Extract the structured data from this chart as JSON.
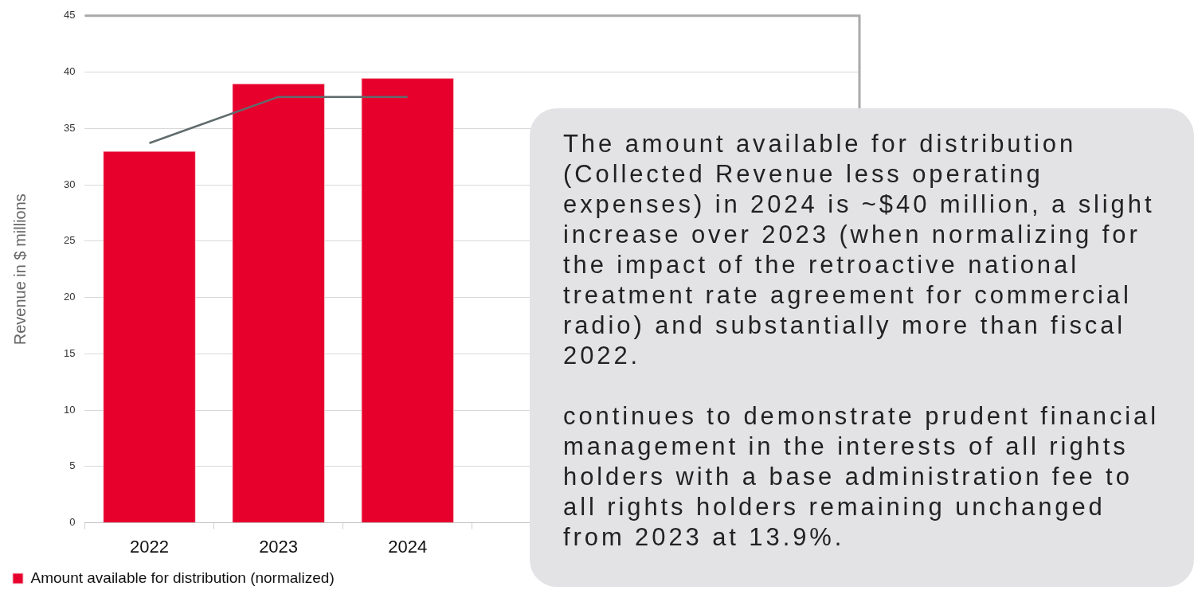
{
  "chart_data": {
    "type": "bar",
    "ylabel": "Revenue in $ millions",
    "categories": [
      "2022",
      "2023",
      "2024",
      null,
      null,
      null
    ],
    "series": [
      {
        "name": "Amount available for distribution (normalized)",
        "color": "#e8002d",
        "values": [
          33,
          39,
          39.5,
          null,
          null,
          null
        ]
      },
      {
        "type": "line",
        "color": "#5f6b6d",
        "values": [
          33.7,
          37.8,
          37.8,
          null,
          null,
          null
        ]
      }
    ],
    "ylim": [
      0,
      45
    ],
    "yticks": [
      0,
      5,
      10,
      15,
      20,
      25,
      30,
      35,
      40,
      45
    ],
    "grid": "y",
    "legend": "bottom left",
    "marker": "none",
    "annotations": [
      "The amount available for distribution (Collected Revenue less operating expenses) in 2024 is ~$40 million, a slight increase over 2023 (when normalizing for the impact of the retroactive national treatment rate agreement for commercial radio) and substantially more than fiscal 2022.\n\ncontinues to demonstrate prudent financial management in the interests of all rights holders with a base administration fee to all rights holders remaining unchanged from 2023 at 13.9%."
    ]
  }
}
